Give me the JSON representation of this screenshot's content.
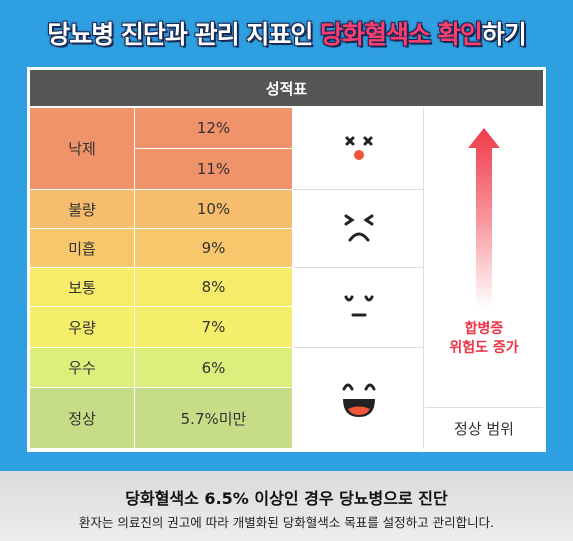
{
  "title": {
    "prefix": "당뇨병 진단과 관리 지표인 ",
    "highlight": "당화혈색소 확인",
    "suffix": "하기"
  },
  "table": {
    "header": "성적표",
    "rows": [
      {
        "grade": "낙제",
        "values": [
          "12%",
          "11%"
        ],
        "color": "#f0926a"
      },
      {
        "grade": "불량",
        "values": [
          "10%"
        ],
        "color": "#f6bd6c"
      },
      {
        "grade": "미흡",
        "values": [
          "9%"
        ],
        "color": "#f6c86b"
      },
      {
        "grade": "보통",
        "values": [
          "8%"
        ],
        "color": "#f7ec6a"
      },
      {
        "grade": "우량",
        "values": [
          "7%"
        ],
        "color": "#f4ee6a"
      },
      {
        "grade": "우수",
        "values": [
          "6%"
        ],
        "color": "#dcef7c"
      },
      {
        "grade": "정상",
        "values": [
          "5.7%미만"
        ],
        "color": "#c7dc86"
      }
    ],
    "faces": [
      "dizzy-face-icon",
      "squint-frown-face-icon",
      "neutral-face-icon",
      "laughing-face-icon"
    ],
    "risk_label_line1": "합병증",
    "risk_label_line2": "위험도 증가",
    "normal_range": "정상 범위",
    "arrow_color": "#f04455"
  },
  "footer": {
    "main": "당화혈색소 6.5% 이상인 경우 당뇨병으로 진단",
    "sub": "환자는 의료진의 권고에 따라 개별화된 당화혈색소 목표를 설정하고 관리합니다."
  }
}
